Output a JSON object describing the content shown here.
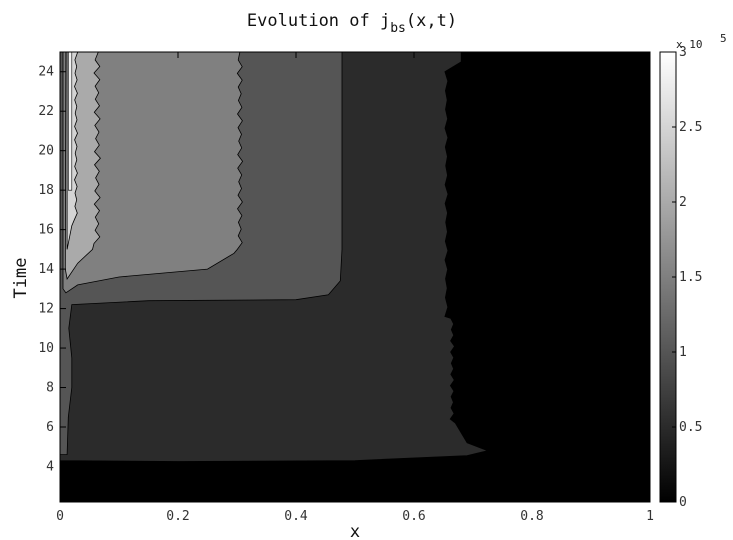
{
  "chart_data": {
    "type": "heatmap",
    "title": {
      "prefix": "Evolution of j",
      "subscript": "bs",
      "suffix": "(x,t)"
    },
    "xlabel": "x",
    "ylabel": "Time",
    "xlim": [
      0,
      1
    ],
    "ylim": [
      2.2,
      25
    ],
    "x_ticks": [
      "0",
      "0.2",
      "0.4",
      "0.6",
      "0.8",
      "1"
    ],
    "y_ticks": [
      "4",
      "6",
      "8",
      "10",
      "12",
      "14",
      "16",
      "18",
      "20",
      "22",
      "24"
    ],
    "colorbar": {
      "range": [
        0,
        3
      ],
      "exponent_label": "x 10",
      "exponent": "5",
      "ticks": [
        "0",
        "0.5",
        "1",
        "1.5",
        "2",
        "2.5",
        "3"
      ],
      "colormap": "gray"
    },
    "contour_levels": [
      0,
      0.5,
      1,
      1.5,
      2,
      2.5,
      3
    ],
    "level_fills": [
      "#000000",
      "#2b2b2b",
      "#555555",
      "#808080",
      "#aaaaaa",
      "#d4d4d4",
      "#ffffff"
    ],
    "regions": [
      {
        "level": 0.5,
        "desc": "band from t~4.3 to 25, x from 0 to ~0.72 tapering to ~0.68"
      },
      {
        "level": 1.0,
        "desc": "plateau above t~12.3, x from 0 to ~0.48"
      },
      {
        "level": 1.5,
        "desc": "above t~12.8, x from 0 to ~0.31"
      },
      {
        "level": 2.0,
        "desc": "above t~13.5, x from ~0.01 to ~0.065"
      },
      {
        "level": 2.5,
        "desc": "above t~15, x from ~0.01 to ~0.03"
      }
    ]
  }
}
